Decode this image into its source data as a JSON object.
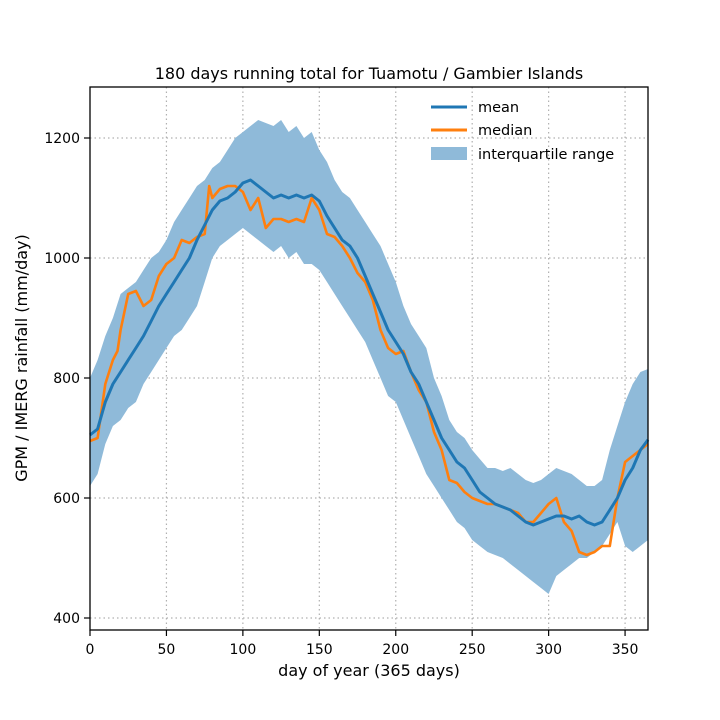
{
  "chart_data": {
    "type": "line",
    "title": "180 days running total for Tuamotu / Gambier Islands",
    "xlabel": "day of year (365 days)",
    "ylabel": "GPM / IMERG rainfall (mm/day)",
    "xlim": [
      0,
      365
    ],
    "ylim": [
      380,
      1285
    ],
    "xticks": [
      0,
      50,
      100,
      150,
      200,
      250,
      300,
      350
    ],
    "yticks": [
      400,
      600,
      800,
      1000,
      1200
    ],
    "grid": true,
    "legend_position": "top-right",
    "legend": [
      "mean",
      "median",
      "interquartile range"
    ],
    "colors": {
      "mean": "#1f77b4",
      "median": "#ff7f0e",
      "iqr": "#8fbad9"
    },
    "series": [
      {
        "name": "mean",
        "x": [
          0,
          5,
          10,
          15,
          20,
          25,
          30,
          35,
          40,
          45,
          50,
          55,
          60,
          65,
          70,
          75,
          80,
          85,
          90,
          95,
          100,
          105,
          110,
          115,
          120,
          125,
          130,
          135,
          140,
          145,
          150,
          155,
          160,
          165,
          170,
          175,
          180,
          185,
          190,
          195,
          200,
          205,
          210,
          215,
          220,
          225,
          230,
          235,
          240,
          245,
          250,
          255,
          260,
          265,
          270,
          275,
          280,
          285,
          290,
          295,
          300,
          305,
          310,
          315,
          320,
          325,
          330,
          335,
          340,
          345,
          350,
          355,
          360,
          365
        ],
        "y": [
          705,
          715,
          760,
          790,
          810,
          830,
          850,
          870,
          895,
          920,
          940,
          960,
          980,
          1000,
          1030,
          1055,
          1080,
          1095,
          1100,
          1110,
          1125,
          1130,
          1120,
          1110,
          1100,
          1105,
          1100,
          1105,
          1100,
          1105,
          1095,
          1070,
          1050,
          1030,
          1020,
          1000,
          970,
          940,
          910,
          880,
          860,
          840,
          810,
          790,
          760,
          730,
          700,
          680,
          660,
          650,
          630,
          610,
          600,
          590,
          585,
          580,
          570,
          560,
          555,
          560,
          565,
          570,
          570,
          565,
          570,
          560,
          555,
          560,
          580,
          600,
          630,
          650,
          680,
          697
        ]
      },
      {
        "name": "median",
        "x": [
          0,
          5,
          10,
          15,
          18,
          20,
          25,
          30,
          35,
          40,
          45,
          50,
          55,
          60,
          65,
          70,
          75,
          78,
          80,
          85,
          90,
          95,
          100,
          105,
          110,
          115,
          120,
          125,
          130,
          135,
          140,
          145,
          150,
          155,
          160,
          165,
          170,
          175,
          180,
          185,
          190,
          195,
          200,
          205,
          210,
          215,
          220,
          225,
          230,
          235,
          240,
          245,
          250,
          255,
          260,
          265,
          270,
          275,
          280,
          285,
          290,
          295,
          300,
          305,
          310,
          315,
          320,
          325,
          330,
          335,
          340,
          345,
          350,
          355,
          360,
          365
        ],
        "y": [
          695,
          700,
          790,
          830,
          845,
          880,
          940,
          945,
          920,
          930,
          970,
          990,
          1000,
          1030,
          1025,
          1035,
          1040,
          1120,
          1100,
          1115,
          1120,
          1120,
          1110,
          1080,
          1100,
          1050,
          1065,
          1065,
          1060,
          1065,
          1060,
          1100,
          1080,
          1040,
          1035,
          1020,
          1000,
          975,
          960,
          930,
          880,
          850,
          840,
          845,
          810,
          780,
          760,
          710,
          680,
          630,
          625,
          610,
          600,
          595,
          590,
          590,
          585,
          580,
          575,
          560,
          560,
          575,
          590,
          600,
          560,
          545,
          510,
          505,
          510,
          520,
          520,
          600,
          660,
          670,
          680,
          690
        ]
      }
    ],
    "interquartile_range": {
      "name": "interquartile range",
      "x": [
        0,
        5,
        10,
        15,
        20,
        25,
        30,
        35,
        40,
        45,
        50,
        55,
        60,
        65,
        70,
        75,
        80,
        85,
        90,
        95,
        100,
        105,
        110,
        115,
        120,
        125,
        130,
        135,
        140,
        145,
        150,
        155,
        160,
        165,
        170,
        175,
        180,
        185,
        190,
        195,
        200,
        205,
        210,
        215,
        220,
        225,
        230,
        235,
        240,
        245,
        250,
        255,
        260,
        265,
        270,
        275,
        280,
        285,
        290,
        295,
        300,
        305,
        310,
        315,
        320,
        325,
        330,
        335,
        340,
        345,
        350,
        355,
        360,
        365
      ],
      "upper": [
        800,
        830,
        870,
        900,
        940,
        950,
        960,
        980,
        1000,
        1010,
        1030,
        1060,
        1080,
        1100,
        1120,
        1130,
        1150,
        1160,
        1180,
        1200,
        1210,
        1220,
        1230,
        1225,
        1220,
        1230,
        1210,
        1220,
        1200,
        1210,
        1180,
        1160,
        1130,
        1110,
        1100,
        1080,
        1060,
        1040,
        1020,
        990,
        960,
        920,
        890,
        870,
        850,
        800,
        770,
        730,
        710,
        700,
        680,
        665,
        650,
        650,
        645,
        650,
        640,
        630,
        625,
        630,
        640,
        650,
        645,
        640,
        630,
        620,
        620,
        630,
        680,
        720,
        760,
        790,
        810,
        815
      ],
      "lower": [
        620,
        640,
        690,
        720,
        730,
        750,
        760,
        790,
        810,
        830,
        850,
        870,
        880,
        900,
        920,
        960,
        1000,
        1020,
        1030,
        1040,
        1050,
        1040,
        1030,
        1020,
        1010,
        1020,
        1000,
        1010,
        990,
        990,
        980,
        960,
        940,
        920,
        900,
        880,
        860,
        830,
        800,
        770,
        760,
        730,
        700,
        670,
        640,
        620,
        600,
        580,
        560,
        550,
        530,
        520,
        510,
        505,
        500,
        490,
        480,
        470,
        460,
        450,
        440,
        470,
        480,
        490,
        500,
        500,
        510,
        520,
        540,
        560,
        520,
        510,
        520,
        530
      ]
    }
  }
}
